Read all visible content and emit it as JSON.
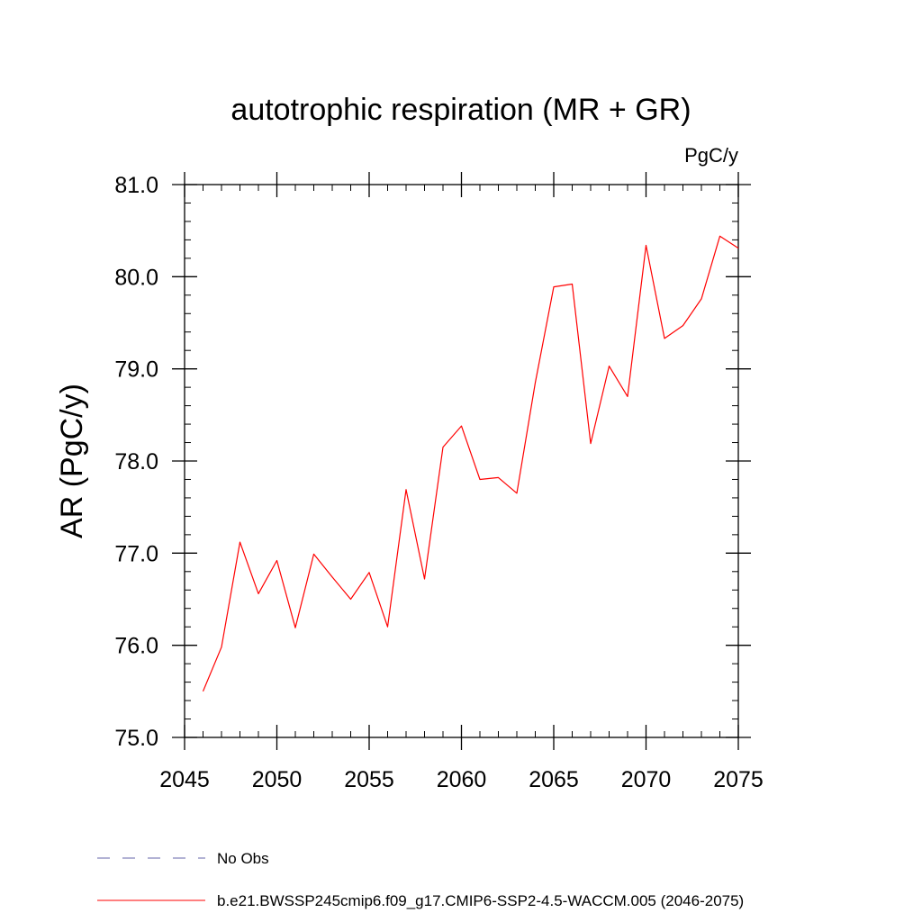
{
  "chart_data": {
    "type": "line",
    "title": "autotrophic respiration (MR + GR)",
    "units_label": "PgC/y",
    "ylabel": "AR  (PgC/y)",
    "xlabel": "",
    "xlim": [
      2045,
      2075
    ],
    "ylim": [
      75.0,
      81.0
    ],
    "x_ticks": [
      "2045",
      "2050",
      "2055",
      "2060",
      "2065",
      "2070",
      "2075"
    ],
    "y_ticks": [
      "75.0",
      "76.0",
      "77.0",
      "78.0",
      "79.0",
      "80.0",
      "81.0"
    ],
    "x_tick_values": [
      2045,
      2050,
      2055,
      2060,
      2065,
      2070,
      2075
    ],
    "y_tick_values": [
      75.0,
      76.0,
      77.0,
      78.0,
      79.0,
      80.0,
      81.0
    ],
    "x_minor_step": 1,
    "y_minor_step": 0.2,
    "grid": false,
    "legend_position": "bottom",
    "series": [
      {
        "name": "b.e21.BWSSP245cmip6.f09_g17.CMIP6-SSP2-4.5-WACCM.005 (2046-2075)",
        "color": "#ff0000",
        "x": [
          2046,
          2047,
          2048,
          2049,
          2050,
          2051,
          2052,
          2053,
          2054,
          2055,
          2056,
          2057,
          2058,
          2059,
          2060,
          2061,
          2062,
          2063,
          2064,
          2065,
          2066,
          2067,
          2068,
          2069,
          2070,
          2071,
          2072,
          2073,
          2074,
          2075
        ],
        "values": [
          75.5,
          75.98,
          77.12,
          76.56,
          76.92,
          76.19,
          76.99,
          76.74,
          76.5,
          76.79,
          76.2,
          77.69,
          76.72,
          78.15,
          78.38,
          77.8,
          77.82,
          77.65,
          78.85,
          79.89,
          79.92,
          78.19,
          79.03,
          78.7,
          80.34,
          79.33,
          79.47,
          79.76,
          80.44,
          80.31
        ]
      }
    ],
    "legend": [
      {
        "label": "No Obs",
        "color": "#6666aa",
        "style": "dashed"
      },
      {
        "label": "b.e21.BWSSP245cmip6.f09_g17.CMIP6-SSP2-4.5-WACCM.005 (2046-2075)",
        "color": "#ff0000",
        "style": "solid"
      }
    ]
  }
}
